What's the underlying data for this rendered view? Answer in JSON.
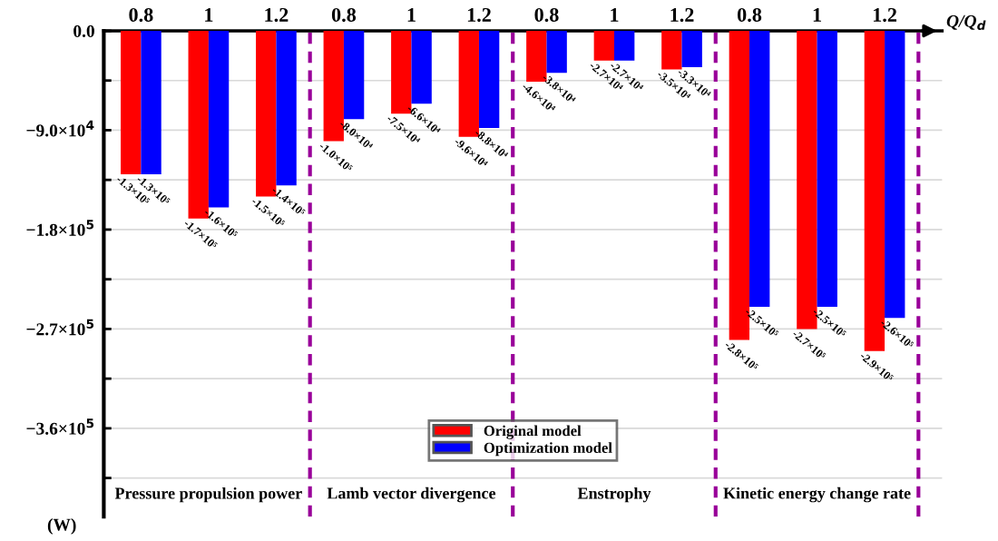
{
  "chart_data": {
    "type": "bar",
    "categories": [
      "0.8",
      "1",
      "1.2",
      "0.8",
      "1",
      "1.2",
      "0.8",
      "1",
      "1.2",
      "0.8",
      "1",
      "1.2"
    ],
    "series": [
      {
        "name": "Original model",
        "color": "#ff0000",
        "values": [
          -130000,
          -170000,
          -150000,
          -100000,
          -75000,
          -96000,
          -46000,
          -27000,
          -35000,
          -280000,
          -270000,
          -290000
        ],
        "value_labels": [
          "-1.3×10⁵",
          "-1.7×10⁵",
          "-1.5×10⁵",
          "-1.0×10⁵",
          "-7.5×10⁴",
          "-9.6×10⁴",
          "-4.6×10⁴",
          "-2.7×10⁴",
          "-3.5×10⁴",
          "-2.8×10⁵",
          "-2.7×10⁵",
          "-2.9×10⁵"
        ]
      },
      {
        "name": "Optimization model",
        "color": "#0000ff",
        "values": [
          -130000,
          -160000,
          -140000,
          -80000,
          -66000,
          -88000,
          -38000,
          -27000,
          -33000,
          -250000,
          -250000,
          -260000
        ],
        "value_labels": [
          "-1.3×10⁵",
          "-1.6×10⁵",
          "-1.4×10⁵",
          "-8.0×10⁴",
          "-6.6×10⁴",
          "-8.8×10⁴",
          "-3.8×10⁴",
          "-2.7×10⁴",
          "-3.3×10⁴",
          "-2.5×10⁵",
          "-2.5×10⁵",
          "-2.6×10⁵"
        ]
      }
    ],
    "xlabel": "Q/Q$_{d}$",
    "ylabel": "(W)",
    "annotations": [
      "Pressure propulsion power",
      "Lamb vector divergence",
      "Enstrophy",
      "Kinetic energy change rate"
    ],
    "ylim": [
      -440000,
      0
    ],
    "yticks": [
      {
        "value": 0,
        "label": "0.0"
      },
      {
        "value": -45000,
        "label": null
      },
      {
        "value": -90000,
        "label": "−9.0×10$^{4}$"
      },
      {
        "value": -135000,
        "label": null
      },
      {
        "value": -180000,
        "label": "−1.8×10$^{5}$"
      },
      {
        "value": -225000,
        "label": null
      },
      {
        "value": -270000,
        "label": "−2.7×10$^{5}$"
      },
      {
        "value": -315000,
        "label": null
      },
      {
        "value": -360000,
        "label": "−3.6×10$^{5}$"
      },
      {
        "value": -405000,
        "label": null
      }
    ],
    "grid": "y",
    "legend": "bottom"
  }
}
